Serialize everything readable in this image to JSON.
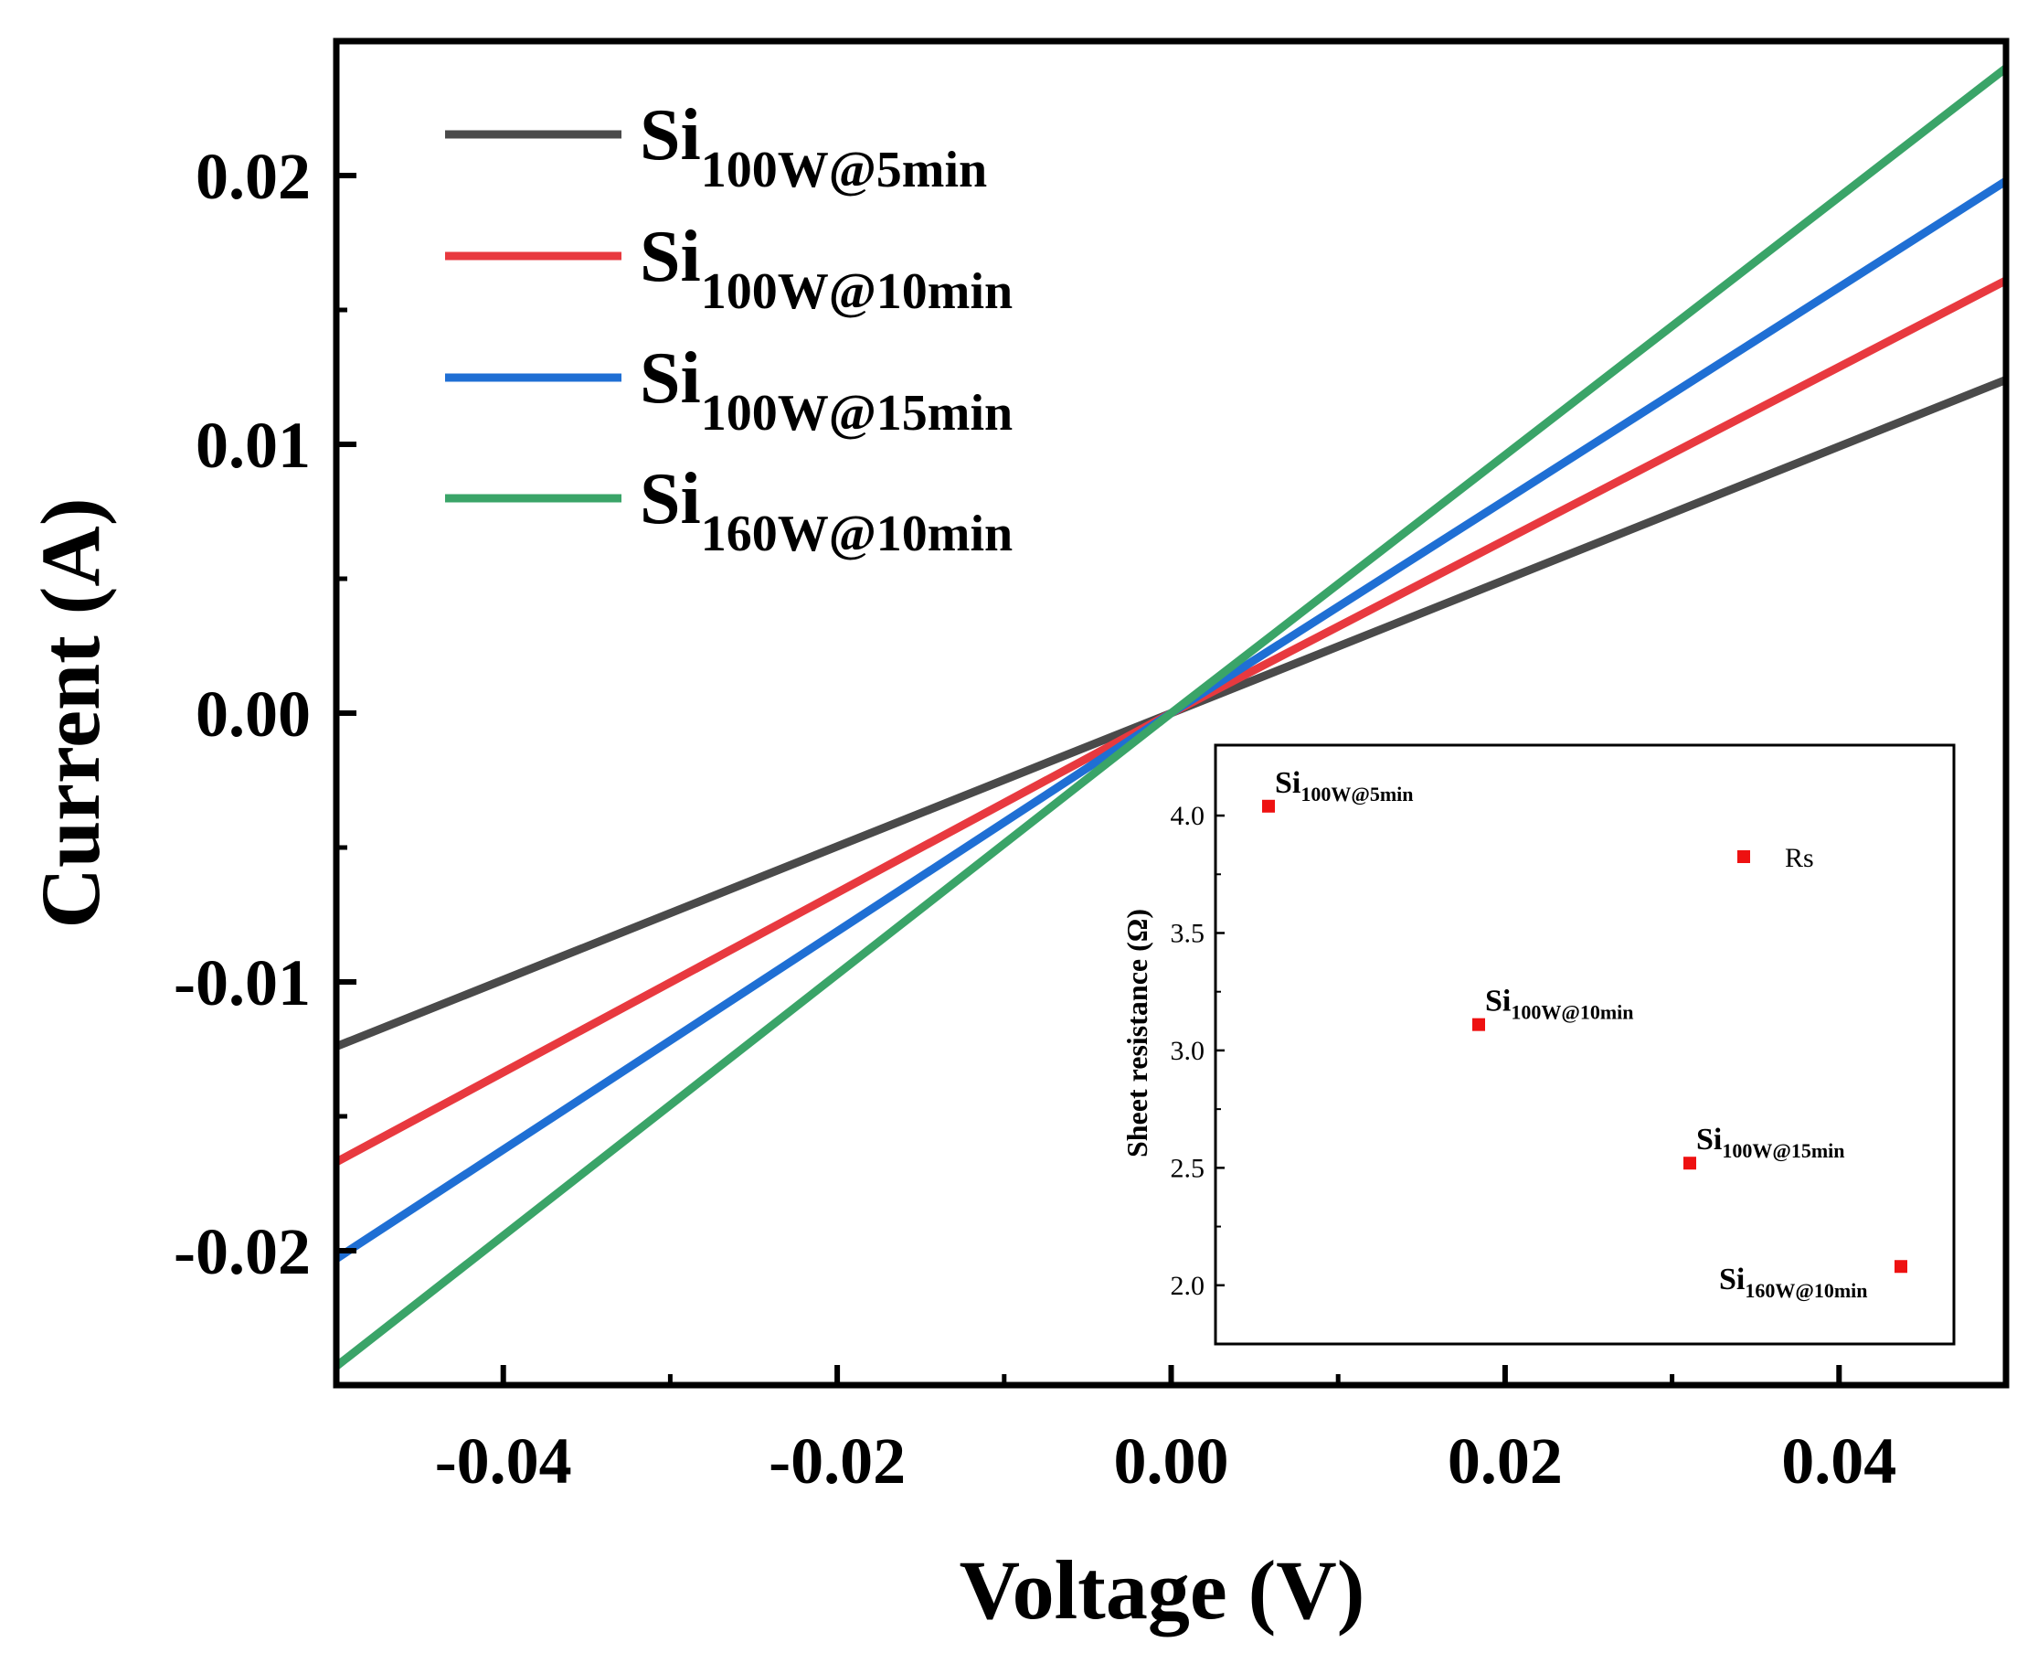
{
  "chart_data": [
    {
      "type": "line",
      "title": "",
      "xlabel": "Voltage (V)",
      "ylabel": "Current (A)",
      "xlim": [
        -0.05,
        0.05
      ],
      "ylim": [
        -0.025,
        0.025
      ],
      "xticks": [
        {
          "value": -0.04,
          "label": "-0.04"
        },
        {
          "value": -0.02,
          "label": "-0.02"
        },
        {
          "value": 0.0,
          "label": "0.00"
        },
        {
          "value": 0.02,
          "label": "0.02"
        },
        {
          "value": 0.04,
          "label": "0.04"
        }
      ],
      "xminor_ticks": [
        -0.03,
        -0.01,
        0.01,
        0.03
      ],
      "yticks": [
        {
          "value": 0.02,
          "label": "0.02"
        },
        {
          "value": 0.01,
          "label": "0.01"
        },
        {
          "value": 0.0,
          "label": "0.00"
        },
        {
          "value": -0.01,
          "label": "-0.01"
        },
        {
          "value": -0.02,
          "label": "-0.02"
        }
      ],
      "yminor_ticks": [
        0.015,
        0.005,
        -0.005,
        -0.015
      ],
      "grid": false,
      "legend_position": "top-left",
      "series": [
        {
          "name": "Si",
          "sub": "100W@5min",
          "color": "#4a4a4a",
          "x": [
            -0.05,
            0.0,
            0.05
          ],
          "y": [
            -0.0124,
            0.0,
            0.0124
          ]
        },
        {
          "name": "Si",
          "sub": "100W@10min",
          "color": "#e8393f",
          "x": [
            -0.05,
            0.0,
            0.05
          ],
          "y": [
            -0.0167,
            0.0,
            0.0161
          ]
        },
        {
          "name": "Si",
          "sub": "100W@15min",
          "color": "#1f6fd4",
          "x": [
            -0.05,
            0.0,
            0.05
          ],
          "y": [
            -0.0203,
            0.0,
            0.0198
          ]
        },
        {
          "name": "Si",
          "sub": "160W@10min",
          "color": "#3aa468",
          "x": [
            -0.05,
            0.0,
            0.05
          ],
          "y": [
            -0.0243,
            0.0,
            0.024
          ]
        }
      ]
    },
    {
      "type": "scatter",
      "role": "inset",
      "title": "",
      "xlabel": "",
      "ylabel": "Sheet resistance (Ω)",
      "ylim": [
        1.75,
        4.3
      ],
      "yticks": [
        {
          "value": 4.0,
          "label": "4.0"
        },
        {
          "value": 3.5,
          "label": "3.5"
        },
        {
          "value": 3.0,
          "label": "3.0"
        },
        {
          "value": 2.5,
          "label": "2.5"
        },
        {
          "value": 2.0,
          "label": "2.0"
        }
      ],
      "yminor_ticks": [
        3.75,
        3.25,
        2.75,
        2.25
      ],
      "legend_label": "Rs",
      "marker_color": "#ee1111",
      "points": [
        {
          "x": 1,
          "y": 4.04,
          "label_main": "Si",
          "label_sub": "100W@5min",
          "label_side": "above-right"
        },
        {
          "x": 2,
          "y": 3.11,
          "label_main": "Si",
          "label_sub": "100W@10min",
          "label_side": "above-right"
        },
        {
          "x": 3,
          "y": 2.52,
          "label_main": "Si",
          "label_sub": "100W@15min",
          "label_side": "above-right"
        },
        {
          "x": 4,
          "y": 2.08,
          "label_main": "Si",
          "label_sub": "160W@10min",
          "label_side": "below-left"
        }
      ]
    }
  ]
}
